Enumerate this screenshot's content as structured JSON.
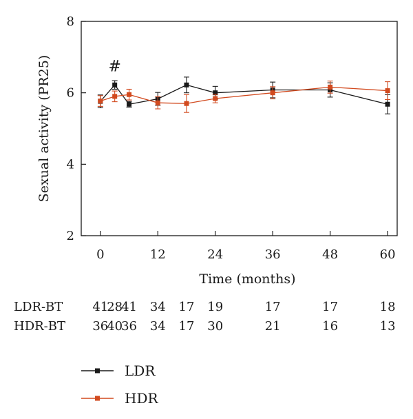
{
  "chart_data": {
    "type": "line",
    "xlabel": "Time (months)",
    "ylabel": "Sexual activity (PR25)",
    "xlim": [
      -4,
      62
    ],
    "ylim": [
      2,
      8
    ],
    "x_ticks": [
      0,
      12,
      24,
      36,
      48,
      60
    ],
    "y_ticks": [
      2,
      4,
      6,
      8
    ],
    "grid": false,
    "legend_position": "bottom-left",
    "annotations": [
      {
        "text": "#",
        "x": 3,
        "y": 6.7
      }
    ],
    "series": [
      {
        "name": "LDR",
        "color": "#1a1a1a",
        "x": [
          0,
          3,
          6,
          12,
          18,
          24,
          36,
          48,
          60
        ],
        "y": [
          5.76,
          6.22,
          5.68,
          5.83,
          6.22,
          6.0,
          6.08,
          6.08,
          5.68
        ],
        "err": [
          0.18,
          0.12,
          0.08,
          0.18,
          0.22,
          0.18,
          0.22,
          0.2,
          0.27
        ]
      },
      {
        "name": "HDR",
        "color": "#d24a1f",
        "x": [
          0,
          3,
          6,
          12,
          18,
          24,
          36,
          48,
          60
        ],
        "y": [
          5.77,
          5.9,
          5.95,
          5.72,
          5.7,
          5.84,
          6.0,
          6.16,
          6.06
        ],
        "err": [
          0.15,
          0.15,
          0.15,
          0.17,
          0.25,
          0.12,
          0.17,
          0.17,
          0.25
        ]
      }
    ]
  },
  "risk_table": {
    "rows": [
      {
        "label": "LDR-BT",
        "values": [
          "41",
          "28",
          "41",
          "34",
          "17",
          "19",
          "17",
          "17",
          "18"
        ]
      },
      {
        "label": "HDR-BT",
        "values": [
          "36",
          "40",
          "36",
          "34",
          "17",
          "30",
          "21",
          "16",
          "13"
        ]
      }
    ]
  },
  "legend": {
    "items": [
      {
        "label": "LDR",
        "color": "#1a1a1a"
      },
      {
        "label": "HDR",
        "color": "#d24a1f"
      }
    ]
  }
}
